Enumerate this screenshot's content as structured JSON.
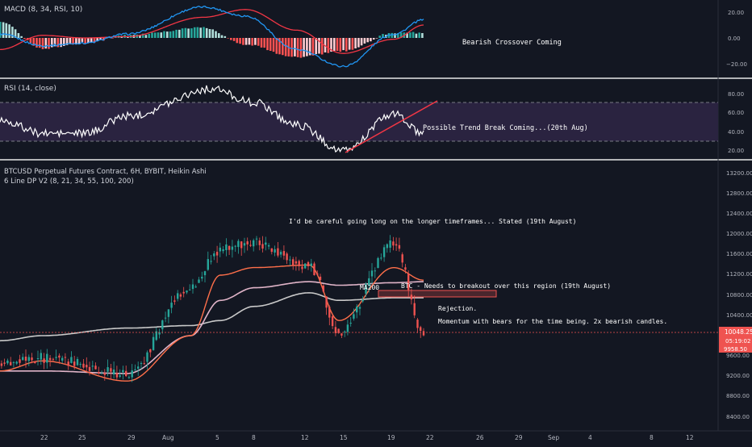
{
  "colors": {
    "background": "#131722",
    "axis_text": "#b2b5be",
    "label_text": "#d1d4dc",
    "bull": "#26a69a",
    "bear": "#ef5350",
    "macd_line": "#2196f3",
    "signal_line": "#f23645",
    "hist_bull_strong": "#26a69a",
    "hist_bull_weak": "#b2dfdb",
    "hist_bear_strong": "#ff5252",
    "hist_bear_weak": "#ffcdd2",
    "rsi_line": "#ffffff",
    "rsi_band": "#2a2340",
    "trendline": "#f23645",
    "ma_21": "#ff6f4a",
    "ma_100": "#c9c9c9",
    "ma_200": "#e0b4c8",
    "price_tag": "#ef5350"
  },
  "panes": {
    "macd": {
      "label": "MACD (8, 34, RSI, 10)",
      "axis_ticks": [
        "20.00",
        "0.00",
        "−20.00"
      ],
      "annotation": "Bearish Crossover Coming"
    },
    "rsi": {
      "label": "RSI (14, close)",
      "axis_ticks": [
        "80.00",
        "60.00",
        "40.00",
        "20.00"
      ],
      "annotation": "Possible Trend Break Coming...(20th Aug)"
    },
    "price": {
      "title": "BTCUSD Perpetual Futures Contract, 6H, BYBIT, Heikin Ashi",
      "subtitle": "6 Line DP V2 (8, 21, 34, 55, 100, 200)",
      "axis_ticks": [
        "13200.00",
        "12800.00",
        "12400.00",
        "12000.00",
        "11600.00",
        "11200.00",
        "10800.00",
        "10400.00",
        "9600.00",
        "9200.00",
        "8800.00",
        "8400.00"
      ],
      "price_tag_value": "10048.25",
      "price_tag_countdown": "05:19:02",
      "price_tag_low": "9958.50",
      "annotations": {
        "careful": "I'd be careful going long on the longer timeframes... Stated (19th August)",
        "breakout": "BTC - Needs to breakout over this region (19th August)",
        "ma200": "MA200",
        "rejection": "Rejection.",
        "momentum": "Momentum with bears for the time being. 2x bearish candles."
      }
    }
  },
  "x_axis": {
    "ticks": [
      "22",
      "25",
      "29",
      "Aug",
      "5",
      "8",
      "12",
      "15",
      "19",
      "22",
      "26",
      "29",
      "Sep",
      "4",
      "8",
      "12"
    ]
  },
  "chart_data": [
    {
      "type": "line",
      "title": "MACD (8, 34, RSI, 10)",
      "ylim": [
        -30,
        30
      ],
      "x": [
        "22",
        "25",
        "29",
        "Aug",
        "5",
        "8",
        "12",
        "15",
        "19",
        "22"
      ],
      "series": [
        {
          "name": "MACD",
          "values": [
            3,
            -6,
            -4,
            3,
            24,
            17,
            -9,
            -22,
            3,
            14
          ]
        },
        {
          "name": "Signal",
          "values": [
            -9,
            2,
            0,
            1,
            16,
            22,
            6,
            -12,
            -1,
            10
          ]
        }
      ]
    },
    {
      "type": "line",
      "title": "RSI (14, close)",
      "ylim": [
        15,
        90
      ],
      "x": [
        "22",
        "25",
        "29",
        "Aug",
        "5",
        "8",
        "12",
        "15",
        "19",
        "22"
      ],
      "series": [
        {
          "name": "RSI",
          "values": [
            52,
            38,
            38,
            56,
            84,
            70,
            47,
            20,
            58,
            37
          ]
        }
      ]
    },
    {
      "type": "line",
      "title": "BTCUSD Perpetual Futures Contract, 6H, BYBIT, Heikin Ashi",
      "ylim": [
        8300,
        13400
      ],
      "x": [
        "22",
        "25",
        "29",
        "Aug",
        "5",
        "8",
        "12",
        "15",
        "19",
        "21"
      ],
      "series": [
        {
          "name": "Heikin Ashi close",
          "values": [
            9500,
            9550,
            9250,
            10950,
            11700,
            11850,
            11400,
            10100,
            11800,
            10048.25
          ]
        },
        {
          "name": "MA 21",
          "values": [
            9300,
            9500,
            9100,
            10000,
            11200,
            11350,
            11400,
            10300,
            11350,
            11100
          ]
        },
        {
          "name": "MA 100",
          "values": [
            9900,
            10000,
            10150,
            10200,
            10300,
            10580,
            10850,
            10700,
            10750,
            10750
          ]
        },
        {
          "name": "MA 200",
          "values": [
            9300,
            9300,
            9250,
            10000,
            10700,
            10950,
            11070,
            11000,
            11050,
            11070
          ]
        }
      ]
    }
  ]
}
